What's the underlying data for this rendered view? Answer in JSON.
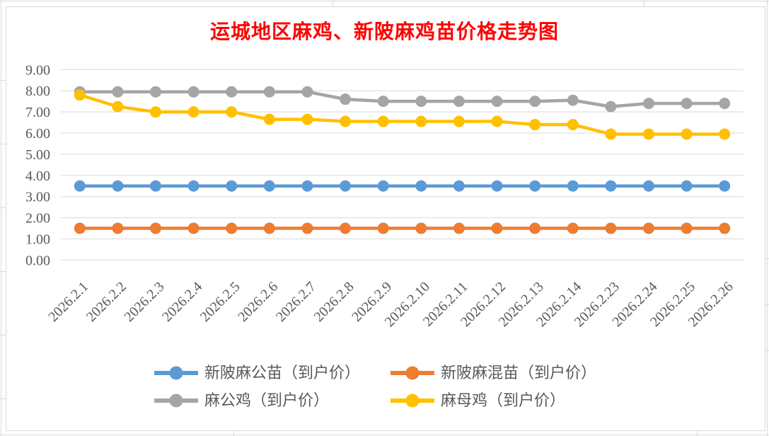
{
  "chart_data": {
    "type": "line",
    "title": "运城地区麻鸡、新陂麻鸡苗价格走势图",
    "title_color": "#FF0000",
    "categories": [
      "2026.2.1",
      "2026.2.2",
      "2026.2.3",
      "2026.2.4",
      "2026.2.5",
      "2026.2.6",
      "2026.2.7",
      "2026.2.8",
      "2026.2.9",
      "2026.2.10",
      "2026.2.11",
      "2026.2.12",
      "2026.2.13",
      "2026.2.14",
      "2026.2.23",
      "2026.2.24",
      "2026.2.25",
      "2026.2.26"
    ],
    "series": [
      {
        "name": "新陂麻公苗（到户价）",
        "color": "#5B9BD5",
        "values": [
          3.5,
          3.5,
          3.5,
          3.5,
          3.5,
          3.5,
          3.5,
          3.5,
          3.5,
          3.5,
          3.5,
          3.5,
          3.5,
          3.5,
          3.5,
          3.5,
          3.5,
          3.5
        ]
      },
      {
        "name": "新陂麻混苗（到户价）",
        "color": "#ED7D31",
        "values": [
          1.5,
          1.5,
          1.5,
          1.5,
          1.5,
          1.5,
          1.5,
          1.5,
          1.5,
          1.5,
          1.5,
          1.5,
          1.5,
          1.5,
          1.5,
          1.5,
          1.5,
          1.5
        ]
      },
      {
        "name": "麻公鸡（到户价）",
        "color": "#A5A5A5",
        "values": [
          7.95,
          7.95,
          7.95,
          7.95,
          7.95,
          7.95,
          7.95,
          7.6,
          7.5,
          7.5,
          7.5,
          7.5,
          7.5,
          7.55,
          7.25,
          7.4,
          7.4,
          7.4
        ]
      },
      {
        "name": "麻母鸡（到户价）",
        "color": "#FFC000",
        "values": [
          7.8,
          7.25,
          7.0,
          7.0,
          7.0,
          6.65,
          6.65,
          6.55,
          6.55,
          6.55,
          6.55,
          6.55,
          6.4,
          6.4,
          5.95,
          5.95,
          5.95,
          5.95
        ]
      }
    ],
    "ylim": [
      0,
      9
    ],
    "ytick_labels": [
      "0.00",
      "1.00",
      "2.00",
      "3.00",
      "4.00",
      "5.00",
      "6.00",
      "7.00",
      "8.00",
      "9.00"
    ],
    "grid": true,
    "grid_color": "#D9D9D9",
    "axis_text_color": "#595959",
    "legend_position": "bottom"
  }
}
